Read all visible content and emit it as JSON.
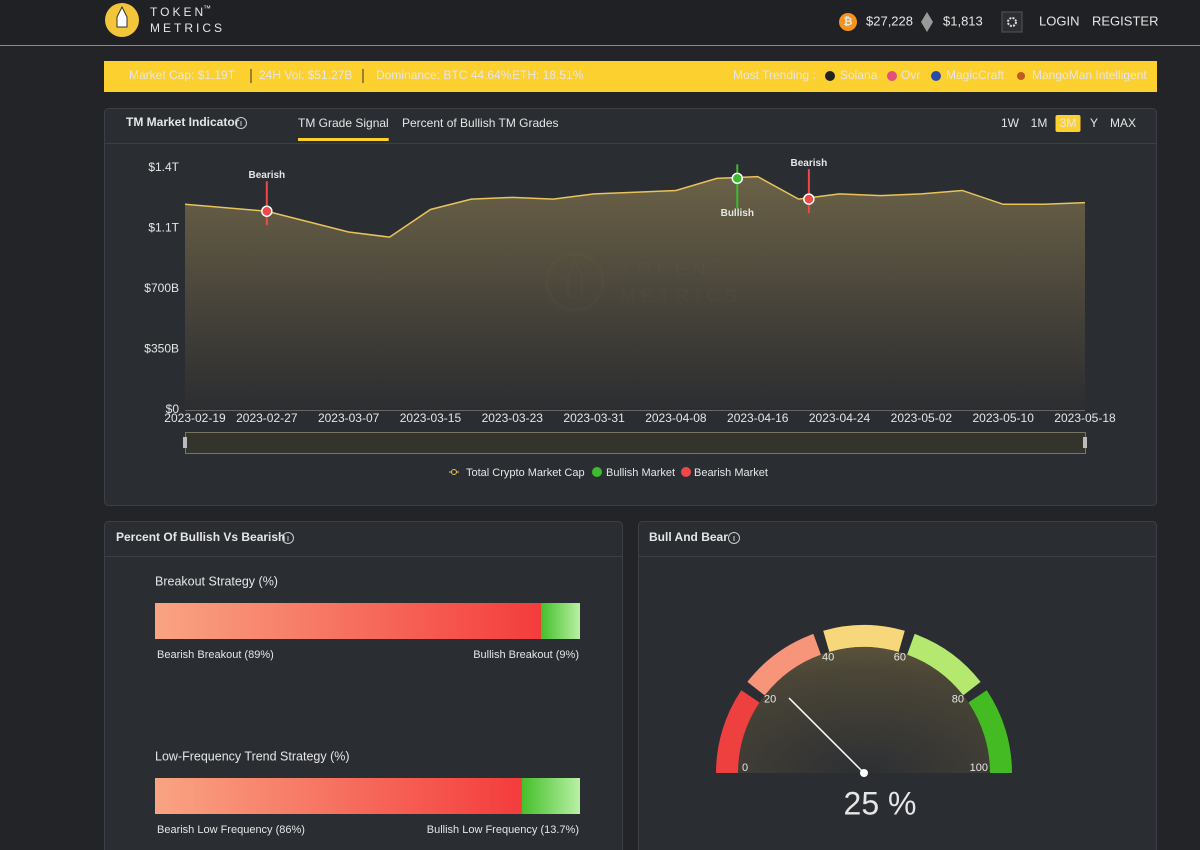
{
  "header": {
    "logo_top": "TOKEN",
    "logo_tm": "™",
    "logo_bottom": "METRICS",
    "btc_price": "$27,228",
    "eth_price": "$1,813",
    "login": "LOGIN",
    "register": "REGISTER"
  },
  "ticker": {
    "market_cap": "Market Cap: $1.19T",
    "volume": "24H Vol: $51.27B",
    "dominance_btc": "Dominance: BTC 44.64%",
    "dominance_eth": "ETH: 18.51%",
    "trending_label": "Most Trending :",
    "trending": [
      "Solana",
      "Ovr",
      "MagicCraft",
      "MangoMan Intelligent"
    ]
  },
  "indicator": {
    "title": "TM Market Indicator",
    "tabs": [
      "TM Grade Signal",
      "Percent of Bullish TM Grades"
    ],
    "active_tab": 0,
    "ranges": [
      "1W",
      "1M",
      "3M",
      "Y",
      "MAX"
    ],
    "active_range": 2
  },
  "chart_data": {
    "type": "line",
    "xlim": [
      "2023-02-19",
      "2023-05-18"
    ],
    "xticks": [
      "2023-02-19",
      "2023-02-27",
      "2023-03-07",
      "2023-03-15",
      "2023-03-23",
      "2023-03-31",
      "2023-04-08",
      "2023-04-16",
      "2023-04-24",
      "2023-05-02",
      "2023-05-10",
      "2023-05-18"
    ],
    "ylim": [
      0,
      1400000000000
    ],
    "yticks": [
      {
        "value": 0,
        "label": "$0"
      },
      {
        "value": 350000000000,
        "label": "$350B"
      },
      {
        "value": 700000000000,
        "label": "$700B"
      },
      {
        "value": 1050000000000,
        "label": "$1.1T"
      },
      {
        "value": 1400000000000,
        "label": "$1.4T"
      }
    ],
    "grid": false,
    "series": [
      {
        "name": "Total Crypto Market Cap",
        "color": "#e8c45a",
        "x": [
          "2023-02-19",
          "2023-02-23",
          "2023-02-27",
          "2023-03-03",
          "2023-03-07",
          "2023-03-11",
          "2023-03-15",
          "2023-03-19",
          "2023-03-23",
          "2023-03-27",
          "2023-03-31",
          "2023-04-04",
          "2023-04-08",
          "2023-04-12",
          "2023-04-16",
          "2023-04-20",
          "2023-04-24",
          "2023-04-28",
          "2023-05-02",
          "2023-05-06",
          "2023-05-10",
          "2023-05-14",
          "2023-05-18"
        ],
        "values": [
          1190000000000,
          1170000000000,
          1150000000000,
          1090000000000,
          1030000000000,
          1000000000000,
          1160000000000,
          1220000000000,
          1230000000000,
          1220000000000,
          1250000000000,
          1260000000000,
          1270000000000,
          1340000000000,
          1350000000000,
          1220000000000,
          1250000000000,
          1240000000000,
          1250000000000,
          1270000000000,
          1190000000000,
          1190000000000,
          1200000000000
        ]
      },
      {
        "name": "Bullish Market",
        "color": "#3dbb2e",
        "x": [
          "2023-04-14"
        ],
        "values": [
          1340000000000
        ],
        "labels": [
          "Bullish"
        ]
      },
      {
        "name": "Bearish Market",
        "color": "#f04848",
        "x": [
          "2023-02-27",
          "2023-04-21"
        ],
        "values": [
          1150000000000,
          1220000000000
        ],
        "labels": [
          "Bearish",
          "Bearish"
        ]
      }
    ]
  },
  "strategies_panel": {
    "title": "Percent Of Bullish Vs Bearish",
    "strategies": [
      {
        "title": "Breakout Strategy (%)",
        "bearish": 89,
        "bullish": 9,
        "bearish_label": "Bearish Breakout (89%)",
        "bullish_label": "Bullish Breakout (9%)"
      },
      {
        "title": "Low-Frequency Trend Strategy (%)",
        "bearish": 86,
        "bullish": 13.7,
        "bearish_label": "Bearish Low Frequency (86%)",
        "bullish_label": "Bullish Low Frequency (13.7%)"
      }
    ]
  },
  "gauge_panel": {
    "title": "Bull And Bear",
    "lim": [
      0,
      100
    ],
    "ticks": [
      0,
      20,
      40,
      60,
      80,
      100
    ],
    "colors": [
      "#ef4040",
      "#f7957a",
      "#f6d77a",
      "#b5e86e",
      "#44bb22"
    ],
    "value": 25,
    "value_label": "25 %"
  }
}
